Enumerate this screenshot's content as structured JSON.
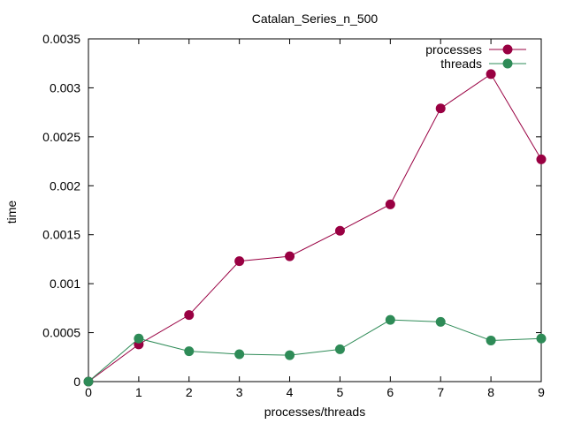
{
  "chart_data": {
    "type": "line",
    "title": "Catalan_Series_n_500",
    "xlabel": "processes/threads",
    "ylabel": "time",
    "x": [
      0,
      1,
      2,
      3,
      4,
      5,
      6,
      7,
      8,
      9
    ],
    "xlim": [
      0,
      9
    ],
    "ylim": [
      0,
      0.0035
    ],
    "xticks": [
      0,
      1,
      2,
      3,
      4,
      5,
      6,
      7,
      8,
      9
    ],
    "yticks": [
      0,
      0.0005,
      0.001,
      0.0015,
      0.002,
      0.0025,
      0.003,
      0.0035
    ],
    "ytick_labels": [
      "0",
      "0.0005",
      "0.001",
      "0.0015",
      "0.002",
      "0.0025",
      "0.003",
      "0.0035"
    ],
    "grid": false,
    "legend_position": "top-right",
    "series": [
      {
        "name": "processes",
        "color": "#990042",
        "values": [
          0,
          0.00038,
          0.00068,
          0.00123,
          0.00128,
          0.00154,
          0.00181,
          0.00279,
          0.00314,
          0.00227
        ]
      },
      {
        "name": "threads",
        "color": "#2e8b57",
        "values": [
          0,
          0.00044,
          0.00031,
          0.00028,
          0.00027,
          0.00033,
          0.00063,
          0.00061,
          0.00042,
          0.00044
        ]
      }
    ]
  }
}
